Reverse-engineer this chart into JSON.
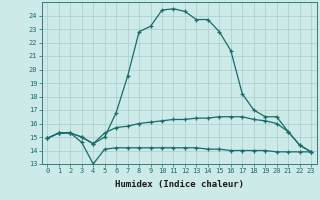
{
  "xlabel": "Humidex (Indice chaleur)",
  "background_color": "#cceae7",
  "grid_color": "#aacccc",
  "line_color": "#1a6b6b",
  "xlim": [
    -0.5,
    23.5
  ],
  "ylim": [
    13,
    25
  ],
  "yticks": [
    13,
    14,
    15,
    16,
    17,
    18,
    19,
    20,
    21,
    22,
    23,
    24
  ],
  "xticks": [
    0,
    1,
    2,
    3,
    4,
    5,
    6,
    7,
    8,
    9,
    10,
    11,
    12,
    13,
    14,
    15,
    16,
    17,
    18,
    19,
    20,
    21,
    22,
    23
  ],
  "line1_x": [
    0,
    1,
    2,
    3,
    4,
    5,
    6,
    7,
    8,
    9,
    10,
    11,
    12,
    13,
    14,
    15,
    16,
    17,
    18,
    19,
    20,
    21,
    22,
    23
  ],
  "line1_y": [
    14.9,
    15.3,
    15.3,
    15.0,
    14.5,
    15.0,
    16.8,
    19.5,
    22.8,
    23.2,
    24.4,
    24.5,
    24.3,
    23.7,
    23.7,
    22.8,
    21.4,
    18.2,
    17.0,
    16.5,
    16.5,
    15.4,
    14.4,
    13.9
  ],
  "line2_x": [
    0,
    1,
    2,
    3,
    4,
    5,
    6,
    7,
    8,
    9,
    10,
    11,
    12,
    13,
    14,
    15,
    16,
    17,
    18,
    19,
    20,
    21,
    22,
    23
  ],
  "line2_y": [
    14.9,
    15.3,
    15.3,
    14.6,
    13.0,
    14.1,
    14.2,
    14.2,
    14.2,
    14.2,
    14.2,
    14.2,
    14.2,
    14.2,
    14.1,
    14.1,
    14.0,
    14.0,
    14.0,
    14.0,
    13.9,
    13.9,
    13.9,
    13.9
  ],
  "line3_x": [
    0,
    1,
    2,
    3,
    4,
    5,
    6,
    7,
    8,
    9,
    10,
    11,
    12,
    13,
    14,
    15,
    16,
    17,
    18,
    19,
    20,
    21,
    22,
    23
  ],
  "line3_y": [
    14.9,
    15.3,
    15.3,
    15.0,
    14.5,
    15.3,
    15.7,
    15.8,
    16.0,
    16.1,
    16.2,
    16.3,
    16.3,
    16.4,
    16.4,
    16.5,
    16.5,
    16.5,
    16.3,
    16.2,
    16.0,
    15.4,
    14.4,
    13.9
  ],
  "tick_fontsize": 5.0,
  "xlabel_fontsize": 6.5
}
